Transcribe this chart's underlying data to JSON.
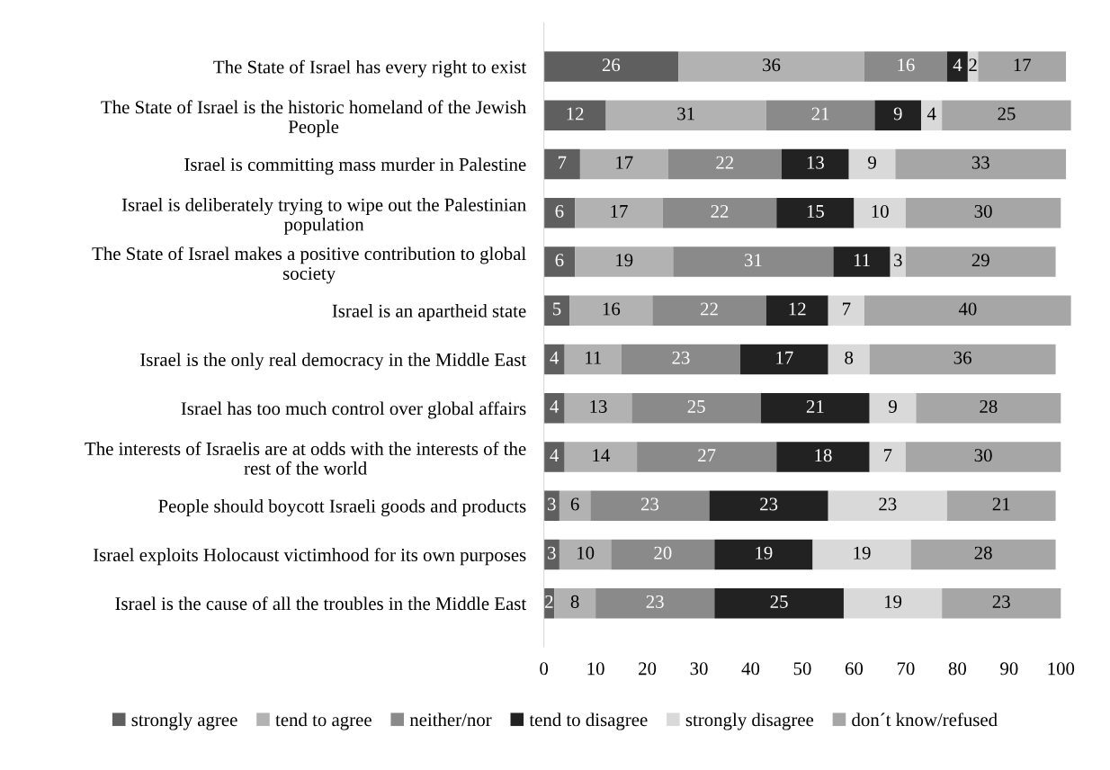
{
  "chart_data": {
    "type": "bar",
    "orientation": "horizontal",
    "stacked": true,
    "data_labels": true,
    "legend": "bottom",
    "grid": false,
    "categories": [
      "The State of Israel has every right to exist",
      "The State of Israel is the historic homeland of the Jewish\nPeople",
      "Israel is committing mass murder in Palestine",
      "Israel is deliberately trying to wipe out the Palestinian\npopulation",
      "The State of Israel makes a positive contribution to global\nsociety",
      "Israel is an apartheid state",
      "Israel is the only real democracy in the Middle East",
      "Israel has too much control over global affairs",
      "The interests of Israelis are at odds with the interests of the\nrest of the world",
      "People should boycott Israeli goods and products",
      "Israel exploits Holocaust victimhood for its own purposes",
      "Israel is the cause of all the troubles in the Middle East"
    ],
    "series": [
      {
        "name": "strongly agree",
        "color": "#5f5f5f",
        "values": [
          26,
          12,
          7,
          6,
          6,
          5,
          4,
          4,
          4,
          3,
          3,
          2
        ]
      },
      {
        "name": "tend to agree",
        "color": "#b2b2b2",
        "values": [
          36,
          31,
          17,
          17,
          19,
          16,
          11,
          13,
          14,
          6,
          10,
          8
        ]
      },
      {
        "name": "neither/nor",
        "color": "#8a8a8a",
        "values": [
          16,
          21,
          22,
          22,
          31,
          22,
          23,
          25,
          27,
          23,
          20,
          23
        ]
      },
      {
        "name": "tend to disagree",
        "color": "#222222",
        "values": [
          4,
          9,
          13,
          15,
          11,
          12,
          17,
          21,
          18,
          23,
          19,
          25
        ]
      },
      {
        "name": "strongly disagree",
        "color": "#d9d9d9",
        "values": [
          2,
          4,
          9,
          10,
          3,
          7,
          8,
          9,
          7,
          23,
          19,
          19
        ]
      },
      {
        "name": "don´t know/refused",
        "color": "#a6a6a6",
        "values": [
          17,
          25,
          33,
          30,
          29,
          40,
          36,
          28,
          30,
          21,
          28,
          23
        ]
      }
    ],
    "xlim": [
      0,
      102
    ],
    "xticks": [
      0,
      10,
      20,
      30,
      40,
      50,
      60,
      70,
      80,
      90,
      100
    ]
  }
}
